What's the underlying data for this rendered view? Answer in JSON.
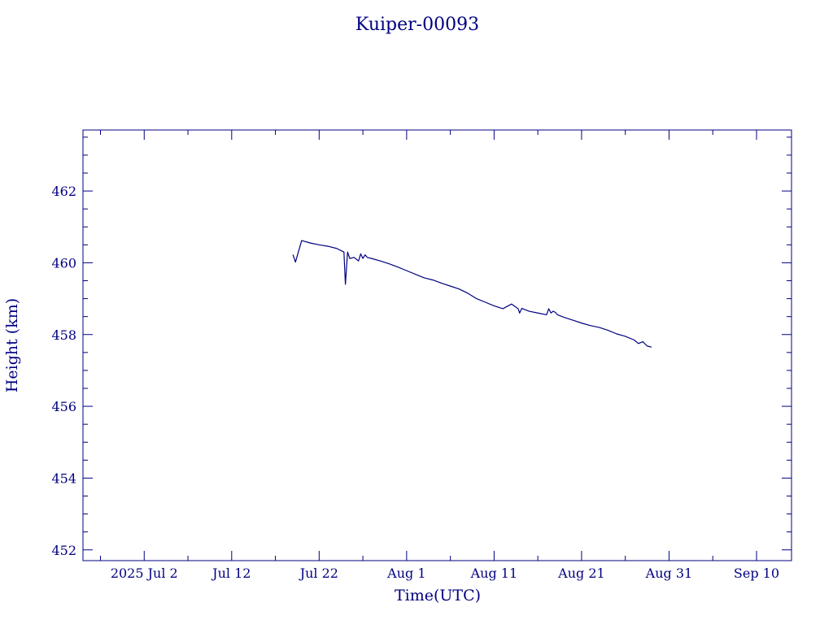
{
  "chart_data": {
    "type": "line",
    "title": "Kuiper-00093",
    "xlabel": "Time(UTC)",
    "ylabel": "Height (km)",
    "color": "#000080",
    "x_axis": {
      "type": "date",
      "range": [
        "2025-06-25",
        "2025-09-14"
      ],
      "ticks": [
        {
          "date": "2025-07-02",
          "label": "2025 Jul  2"
        },
        {
          "date": "2025-07-12",
          "label": "Jul 12"
        },
        {
          "date": "2025-07-22",
          "label": "Jul 22"
        },
        {
          "date": "2025-08-01",
          "label": "Aug  1"
        },
        {
          "date": "2025-08-11",
          "label": "Aug 11"
        },
        {
          "date": "2025-08-21",
          "label": "Aug 21"
        },
        {
          "date": "2025-08-31",
          "label": "Aug 31"
        },
        {
          "date": "2025-09-10",
          "label": "Sep 10"
        }
      ]
    },
    "y_axis": {
      "range": [
        451.7,
        463.7
      ],
      "ticks": [
        452,
        454,
        456,
        458,
        460,
        462
      ]
    },
    "grid": false,
    "series": [
      {
        "x": [
          "2025-07-19 00:00",
          "2025-07-19 07:00",
          "2025-07-20 00:00",
          "2025-07-21 00:00",
          "2025-07-22 00:00",
          "2025-07-23 00:00",
          "2025-07-24 00:00",
          "2025-07-24 16:00",
          "2025-07-24 20:00",
          "2025-07-25 00:00",
          "2025-07-25 06:00",
          "2025-07-25 12:00",
          "2025-07-26 00:00",
          "2025-07-26 12:00",
          "2025-07-26 18:00",
          "2025-07-27 00:00",
          "2025-07-27 06:00",
          "2025-07-27 12:00",
          "2025-07-28 00:00",
          "2025-07-29 00:00",
          "2025-07-30 00:00",
          "2025-07-31 00:00",
          "2025-08-01 00:00",
          "2025-08-02 00:00",
          "2025-08-03 00:00",
          "2025-08-04 00:00",
          "2025-08-05 00:00",
          "2025-08-06 00:00",
          "2025-08-07 00:00",
          "2025-08-08 00:00",
          "2025-08-09 00:00",
          "2025-08-10 00:00",
          "2025-08-11 00:00",
          "2025-08-12 00:00",
          "2025-08-13 00:00",
          "2025-08-13 18:00",
          "2025-08-13 22:00",
          "2025-08-14 04:00",
          "2025-08-15 00:00",
          "2025-08-16 00:00",
          "2025-08-17 00:00",
          "2025-08-17 06:00",
          "2025-08-17 12:00",
          "2025-08-17 18:00",
          "2025-08-18 00:00",
          "2025-08-18 06:00",
          "2025-08-19 00:00",
          "2025-08-20 00:00",
          "2025-08-21 00:00",
          "2025-08-22 00:00",
          "2025-08-23 00:00",
          "2025-08-24 00:00",
          "2025-08-25 00:00",
          "2025-08-26 00:00",
          "2025-08-27 00:00",
          "2025-08-27 12:00",
          "2025-08-28 00:00",
          "2025-08-28 12:00",
          "2025-08-29 00:00"
        ],
        "y": [
          460.23,
          460.02,
          460.62,
          460.55,
          460.5,
          460.46,
          460.4,
          460.32,
          460.3,
          459.4,
          460.3,
          460.12,
          460.15,
          460.05,
          460.25,
          460.12,
          460.22,
          460.15,
          460.12,
          460.05,
          459.97,
          459.88,
          459.78,
          459.68,
          459.58,
          459.52,
          459.43,
          459.35,
          459.27,
          459.15,
          459.0,
          458.9,
          458.8,
          458.72,
          458.85,
          458.72,
          458.6,
          458.73,
          458.65,
          458.6,
          458.55,
          458.72,
          458.6,
          458.65,
          458.62,
          458.55,
          458.48,
          458.4,
          458.32,
          458.25,
          458.2,
          458.12,
          458.02,
          457.95,
          457.85,
          457.75,
          457.8,
          457.68,
          457.65
        ]
      }
    ]
  }
}
